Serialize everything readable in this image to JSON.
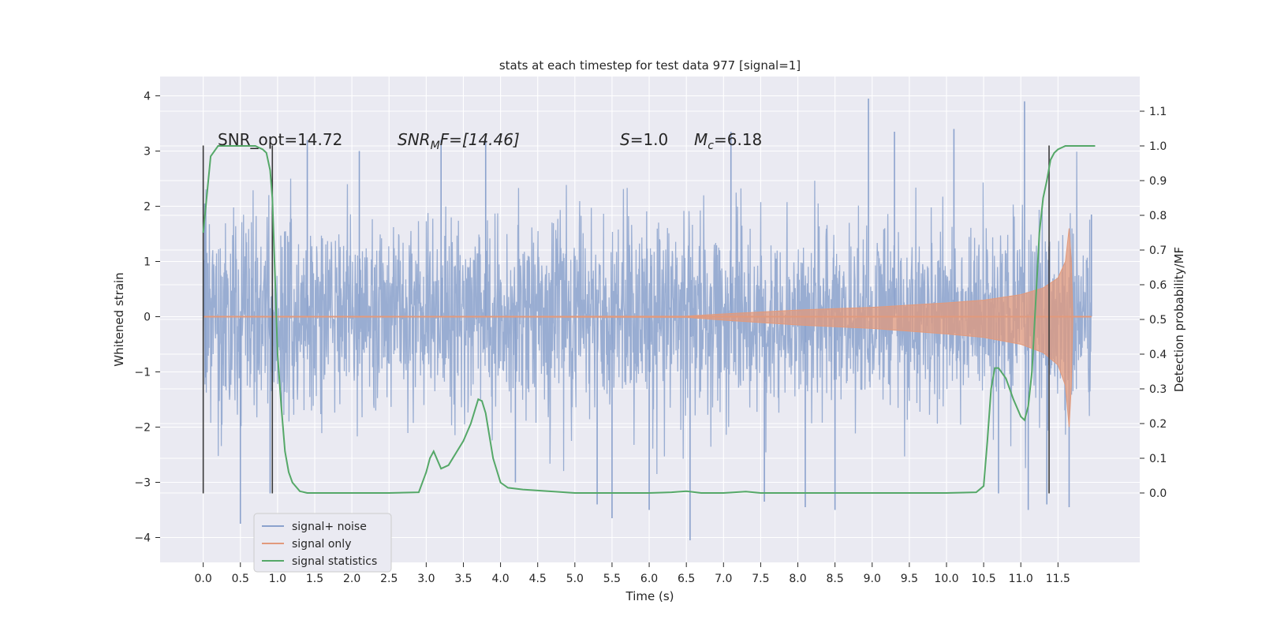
{
  "chart_data": {
    "type": "line",
    "title": "stats at each timestep for test data 977 [signal=1]",
    "xlabel": "Time (s)",
    "ylabel": "Whitened strain",
    "ylabel_right": "Detection probability/MF",
    "xlim": [
      -0.58,
      12.6
    ],
    "ylim": [
      -4.45,
      4.35
    ],
    "ylim_right": [
      -0.2,
      1.2
    ],
    "x_ticks": [
      "0.0",
      "0.5",
      "1.0",
      "1.5",
      "2.0",
      "2.5",
      "3.0",
      "3.5",
      "4.0",
      "4.5",
      "5.0",
      "5.5",
      "6.0",
      "6.5",
      "7.0",
      "7.5",
      "8.0",
      "8.5",
      "9.0",
      "9.5",
      "10.0",
      "10.5",
      "11.0",
      "11.5"
    ],
    "y_ticks_left": [
      "4",
      "3",
      "2",
      "1",
      "0",
      "−1",
      "−2",
      "−3",
      "−4"
    ],
    "y_ticks_right": [
      "1.1",
      "1.0",
      "0.9",
      "0.8",
      "0.7",
      "0.6",
      "0.5",
      "0.4",
      "0.3",
      "0.2",
      "0.1",
      "0.0"
    ],
    "grid": true,
    "legend_position": "lower-left",
    "colors": {
      "noise": "#8ba2cd",
      "signal": "#e29a7c",
      "stats": "#55a868",
      "vlines": "#3a3a3a",
      "axes_bg": "#eaeaf2",
      "grid": "#ffffff"
    },
    "annotations": {
      "snr_opt": "SNR_opt=14.72",
      "snr_mf_main": "SNR",
      "snr_mf_sub": "M",
      "snr_mf_rest": "F=[14.46]",
      "s_main": "S",
      "s_rest": "=1.0",
      "mc_main": "M",
      "mc_sub": "c",
      "mc_rest": "=6.18"
    },
    "vertical_lines": [
      {
        "x": 0.0,
        "y": [
          -3.2,
          3.1
        ]
      },
      {
        "x": 0.93,
        "y": [
          -3.2,
          3.1
        ]
      },
      {
        "x": 11.38,
        "y": [
          -3.2,
          3.1
        ]
      }
    ],
    "noise": {
      "name": "signal+ noise",
      "t_range": [
        0.0,
        11.95
      ],
      "band_sigma": 0.85,
      "spikes": [
        {
          "x": 0.02,
          "y": 2.05
        },
        {
          "x": 0.03,
          "y": -1.1
        },
        {
          "x": 0.5,
          "y": -3.75
        },
        {
          "x": 0.9,
          "y": -3.2
        },
        {
          "x": 1.4,
          "y": 3.2
        },
        {
          "x": 2.1,
          "y": 3.0
        },
        {
          "x": 3.2,
          "y": 3.2
        },
        {
          "x": 3.8,
          "y": 3.2
        },
        {
          "x": 4.2,
          "y": -3.0
        },
        {
          "x": 5.3,
          "y": -3.4
        },
        {
          "x": 5.5,
          "y": -3.65
        },
        {
          "x": 6.0,
          "y": -3.5
        },
        {
          "x": 6.55,
          "y": -4.05
        },
        {
          "x": 7.1,
          "y": 3.35
        },
        {
          "x": 7.55,
          "y": -3.35
        },
        {
          "x": 8.1,
          "y": -3.45
        },
        {
          "x": 8.5,
          "y": -3.5
        },
        {
          "x": 8.95,
          "y": 3.95
        },
        {
          "x": 9.3,
          "y": 3.35
        },
        {
          "x": 10.1,
          "y": 3.4
        },
        {
          "x": 10.7,
          "y": -3.2
        },
        {
          "x": 11.05,
          "y": 3.9
        },
        {
          "x": 11.1,
          "y": -3.5
        },
        {
          "x": 11.35,
          "y": -3.4
        },
        {
          "x": 11.65,
          "y": -3.45
        },
        {
          "x": 11.95,
          "y": 1.85
        }
      ]
    },
    "signal": {
      "name": "signal only",
      "envelope": [
        {
          "x": 0.0,
          "y": 0.0
        },
        {
          "x": 6.5,
          "y": 0.01
        },
        {
          "x": 7.0,
          "y": 0.05
        },
        {
          "x": 8.0,
          "y": 0.12
        },
        {
          "x": 9.0,
          "y": 0.17
        },
        {
          "x": 10.0,
          "y": 0.25
        },
        {
          "x": 10.5,
          "y": 0.3
        },
        {
          "x": 11.0,
          "y": 0.4
        },
        {
          "x": 11.3,
          "y": 0.52
        },
        {
          "x": 11.5,
          "y": 0.7
        },
        {
          "x": 11.6,
          "y": 1.0
        },
        {
          "x": 11.65,
          "y": 1.6
        },
        {
          "x": 11.68,
          "y": 1.0
        },
        {
          "x": 11.7,
          "y": 0.0
        },
        {
          "x": 11.95,
          "y": 0.0
        }
      ]
    },
    "series": [
      {
        "name": "signal statistics",
        "x": [
          0.0,
          0.1,
          0.2,
          0.3,
          0.5,
          0.7,
          0.8,
          0.85,
          0.9,
          0.93,
          0.97,
          1.0,
          1.05,
          1.1,
          1.15,
          1.2,
          1.3,
          1.4,
          1.5,
          2.0,
          2.5,
          2.9,
          3.0,
          3.05,
          3.1,
          3.2,
          3.3,
          3.5,
          3.6,
          3.7,
          3.75,
          3.8,
          3.9,
          4.0,
          4.1,
          4.3,
          5.0,
          6.0,
          6.3,
          6.5,
          6.7,
          7.0,
          7.3,
          7.5,
          8.0,
          9.0,
          10.0,
          10.4,
          10.5,
          10.55,
          10.6,
          10.65,
          10.7,
          10.8,
          10.9,
          11.0,
          11.05,
          11.1,
          11.15,
          11.2,
          11.25,
          11.3,
          11.35,
          11.4,
          11.45,
          11.5,
          11.6,
          11.7,
          11.9,
          12.0
        ],
        "values": [
          0.75,
          0.97,
          1.0,
          1.0,
          1.0,
          1.0,
          0.99,
          0.98,
          0.93,
          0.85,
          0.6,
          0.4,
          0.25,
          0.12,
          0.06,
          0.03,
          0.005,
          0.0,
          0.0,
          0.0,
          0.0,
          0.002,
          0.06,
          0.1,
          0.12,
          0.07,
          0.08,
          0.15,
          0.2,
          0.27,
          0.265,
          0.23,
          0.1,
          0.03,
          0.015,
          0.01,
          0.0,
          0.0,
          0.002,
          0.005,
          0.0,
          0.0,
          0.004,
          0.0,
          0.0,
          0.0,
          0.0,
          0.002,
          0.02,
          0.15,
          0.3,
          0.36,
          0.36,
          0.33,
          0.27,
          0.22,
          0.21,
          0.25,
          0.35,
          0.55,
          0.75,
          0.85,
          0.9,
          0.96,
          0.98,
          0.99,
          1.0,
          1.0,
          1.0,
          1.0
        ]
      }
    ],
    "legend": [
      "signal+ noise",
      "signal only",
      "signal statistics"
    ]
  }
}
